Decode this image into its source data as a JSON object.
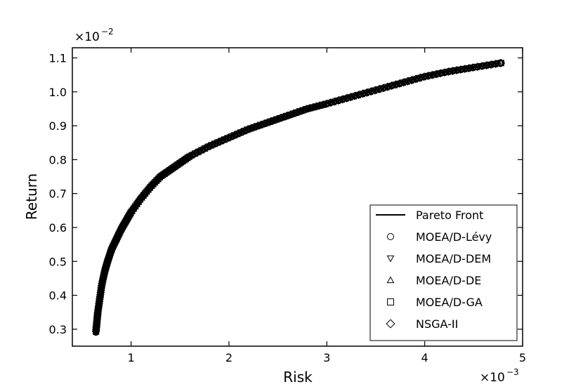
{
  "chart_data": {
    "type": "scatter",
    "title": "",
    "xlabel": "Risk",
    "ylabel": "Return",
    "x_multiplier_label": "×10",
    "x_multiplier_exp": "−3",
    "y_multiplier_label": "×10",
    "y_multiplier_exp": "−2",
    "xlim": [
      0.4,
      5.0
    ],
    "ylim": [
      0.25,
      1.13
    ],
    "x_ticks": [
      1,
      2,
      3,
      4,
      5
    ],
    "y_ticks": [
      0.3,
      0.4,
      0.5,
      0.6,
      0.7,
      0.8,
      0.9,
      1.0,
      1.1
    ],
    "x_tick_labels": [
      "1",
      "2",
      "3",
      "4",
      "5"
    ],
    "y_tick_labels": [
      "0.3",
      "0.4",
      "0.5",
      "0.6",
      "0.7",
      "0.8",
      "0.9",
      "1.0",
      "1.1"
    ],
    "grid": false,
    "legend_position": "lower-right",
    "series": [
      {
        "name": "Pareto Front",
        "marker": "line",
        "x": [
          0.64,
          0.65,
          0.66,
          0.68,
          0.7,
          0.73,
          0.76,
          0.8,
          0.85,
          0.9,
          0.95,
          1.0,
          1.1,
          1.2,
          1.3,
          1.4,
          1.5,
          1.6,
          1.8,
          2.0,
          2.2,
          2.4,
          2.6,
          2.8,
          3.0,
          3.25,
          3.5,
          3.75,
          4.0,
          4.25,
          4.5,
          4.78
        ],
        "y": [
          0.29,
          0.32,
          0.35,
          0.39,
          0.43,
          0.47,
          0.5,
          0.535,
          0.565,
          0.595,
          0.62,
          0.645,
          0.685,
          0.72,
          0.75,
          0.77,
          0.79,
          0.81,
          0.84,
          0.865,
          0.89,
          0.91,
          0.93,
          0.95,
          0.965,
          0.985,
          1.005,
          1.025,
          1.045,
          1.06,
          1.072,
          1.085
        ]
      },
      {
        "name": "MOEA/D-Lévy",
        "marker": "circle"
      },
      {
        "name": "MOEA/D-DEM",
        "marker": "triangle-down"
      },
      {
        "name": "MOEA/D-DE",
        "marker": "triangle-up"
      },
      {
        "name": "MOEA/D-GA",
        "marker": "square"
      },
      {
        "name": "NSGA-II",
        "marker": "diamond"
      }
    ]
  }
}
